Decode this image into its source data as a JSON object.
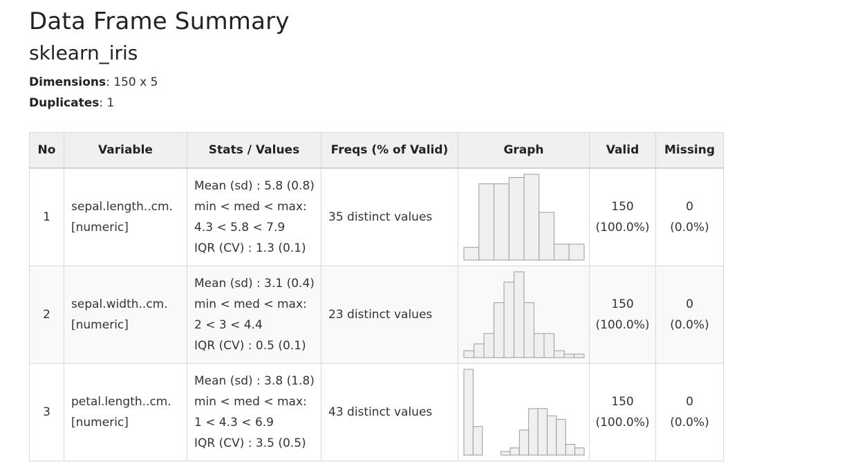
{
  "title": "Data Frame Summary",
  "subtitle": "sklearn_iris",
  "meta": {
    "dimensions_label": "Dimensions",
    "dimensions_value": ": 150 x 5",
    "duplicates_label": "Duplicates",
    "duplicates_value": ": 1"
  },
  "columns": [
    "No",
    "Variable",
    "Stats / Values",
    "Freqs (% of Valid)",
    "Graph",
    "Valid",
    "Missing"
  ],
  "rows": [
    {
      "no": "1",
      "var_name": "sepal.length..cm.",
      "var_type": "[numeric]",
      "stats": [
        "Mean (sd) : 5.8 (0.8)",
        "min < med < max:",
        "4.3 < 5.8 < 7.9",
        "IQR (CV) : 1.3 (0.1)"
      ],
      "freqs": "35 distinct values",
      "valid_n": "150",
      "valid_pct": "(100.0%)",
      "missing_n": "0",
      "missing_pct": "(0.0%)"
    },
    {
      "no": "2",
      "var_name": "sepal.width..cm.",
      "var_type": "[numeric]",
      "stats": [
        "Mean (sd) : 3.1 (0.4)",
        "min < med < max:",
        "2 < 3 < 4.4",
        "IQR (CV) : 0.5 (0.1)"
      ],
      "freqs": "23 distinct values",
      "valid_n": "150",
      "valid_pct": "(100.0%)",
      "missing_n": "0",
      "missing_pct": "(0.0%)"
    },
    {
      "no": "3",
      "var_name": "petal.length..cm.",
      "var_type": "[numeric]",
      "stats": [
        "Mean (sd) : 3.8 (1.8)",
        "min < med < max:",
        "1 < 4.3 < 6.9",
        "IQR (CV) : 3.5 (0.5)"
      ],
      "freqs": "43 distinct values",
      "valid_n": "150",
      "valid_pct": "(100.0%)",
      "missing_n": "0",
      "missing_pct": "(0.0%)"
    }
  ],
  "chart_data": [
    {
      "type": "bar",
      "values": [
        4,
        24,
        24,
        26,
        27,
        15,
        5,
        5
      ]
    },
    {
      "type": "bar",
      "values": [
        2,
        4,
        7,
        16,
        22,
        25,
        16,
        7,
        7,
        2,
        1,
        1
      ]
    },
    {
      "type": "bar",
      "values": [
        24,
        8,
        0,
        0,
        1,
        2,
        7,
        13,
        13,
        11,
        10,
        3,
        2
      ]
    }
  ],
  "colors": {
    "bar_fill": "#f0f0f0",
    "bar_stroke": "#9a9a9a",
    "header_bg": "#f0f0f0",
    "border": "#d8d8d8"
  }
}
